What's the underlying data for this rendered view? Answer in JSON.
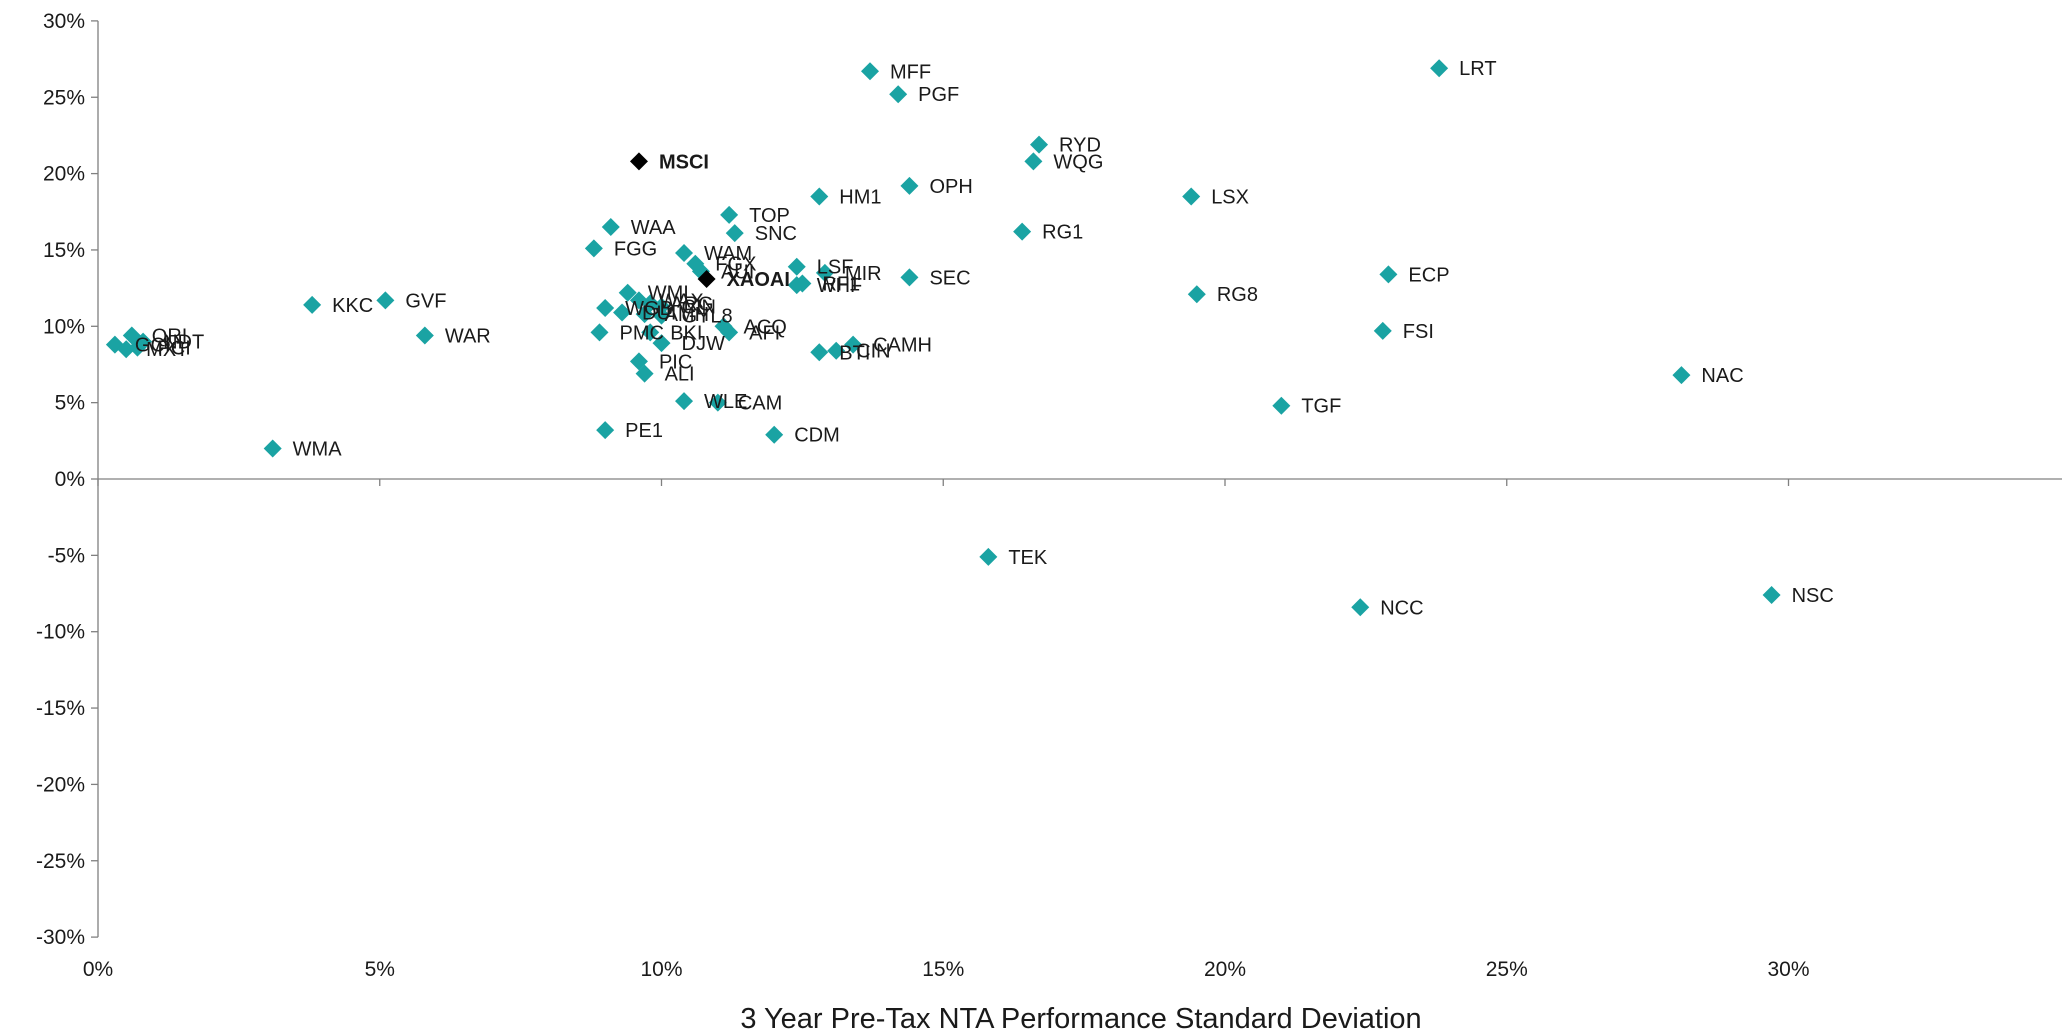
{
  "chart_data": {
    "type": "scatter",
    "title": "",
    "xlabel": "3 Year Pre-Tax NTA Performance Standard Deviation",
    "ylabel": "",
    "xlim": [
      0,
      35
    ],
    "ylim": [
      -30,
      30
    ],
    "x_ticks": [
      0,
      5,
      10,
      15,
      20,
      25,
      30
    ],
    "x_tick_labels": [
      "0%",
      "5%",
      "10%",
      "15%",
      "20%",
      "25%",
      "30%"
    ],
    "y_ticks": [
      30,
      25,
      20,
      15,
      10,
      5,
      0,
      -5,
      -10,
      -15,
      -20,
      -25,
      -30
    ],
    "y_tick_labels": [
      "30%",
      "25%",
      "20%",
      "15%",
      "10%",
      "5%",
      "0%",
      "-5%",
      "-10%",
      "-15%",
      "-20%",
      "-25%",
      "-30%"
    ],
    "grid": false,
    "legend": "none",
    "colors": {
      "point": "#1aa3a3",
      "highlight": "#000000"
    },
    "points": [
      {
        "label": "MFF",
        "x": 13.7,
        "y": 26.7
      },
      {
        "label": "PGF",
        "x": 14.2,
        "y": 25.2
      },
      {
        "label": "LRT",
        "x": 23.8,
        "y": 26.9
      },
      {
        "label": "MSCI",
        "x": 9.6,
        "y": 20.8,
        "highlight": true
      },
      {
        "label": "RYD",
        "x": 16.7,
        "y": 21.9
      },
      {
        "label": "WQG",
        "x": 16.6,
        "y": 20.8
      },
      {
        "label": "OPH",
        "x": 14.4,
        "y": 19.2
      },
      {
        "label": "HM1",
        "x": 12.8,
        "y": 18.5
      },
      {
        "label": "LSX",
        "x": 19.4,
        "y": 18.5
      },
      {
        "label": "TOP",
        "x": 11.2,
        "y": 17.3
      },
      {
        "label": "WAA",
        "x": 9.1,
        "y": 16.5
      },
      {
        "label": "SNC",
        "x": 11.3,
        "y": 16.1
      },
      {
        "label": "RG1",
        "x": 16.4,
        "y": 16.2
      },
      {
        "label": "FGG",
        "x": 8.8,
        "y": 15.1
      },
      {
        "label": "WAM",
        "x": 10.4,
        "y": 14.8
      },
      {
        "label": "FGX",
        "x": 10.6,
        "y": 14.1
      },
      {
        "label": "AUI",
        "x": 10.7,
        "y": 13.6
      },
      {
        "label": "XAOAI",
        "x": 10.8,
        "y": 13.1,
        "highlight": true
      },
      {
        "label": "LSF",
        "x": 12.4,
        "y": 13.9
      },
      {
        "label": "RF1",
        "x": 12.5,
        "y": 12.8
      },
      {
        "label": "MIR",
        "x": 12.9,
        "y": 13.5
      },
      {
        "label": "WHF",
        "x": 12.4,
        "y": 12.7
      },
      {
        "label": "SEC",
        "x": 14.4,
        "y": 13.2
      },
      {
        "label": "ECP",
        "x": 22.9,
        "y": 13.4
      },
      {
        "label": "RG8",
        "x": 19.5,
        "y": 12.1
      },
      {
        "label": "KKC",
        "x": 3.8,
        "y": 11.4
      },
      {
        "label": "GVF",
        "x": 5.1,
        "y": 11.7
      },
      {
        "label": "WMI",
        "x": 9.4,
        "y": 12.2
      },
      {
        "label": "WAX",
        "x": 9.6,
        "y": 11.7
      },
      {
        "label": "ARG",
        "x": 9.8,
        "y": 11.5
      },
      {
        "label": "WGB",
        "x": 9.0,
        "y": 11.2
      },
      {
        "label": "CIN",
        "x": 10.0,
        "y": 11.3
      },
      {
        "label": "DUI",
        "x": 9.3,
        "y": 10.9
      },
      {
        "label": "AMH",
        "x": 9.7,
        "y": 10.8
      },
      {
        "label": "GYL8",
        "x": 10.0,
        "y": 10.7
      },
      {
        "label": "ACQ",
        "x": 11.1,
        "y": 10.0
      },
      {
        "label": "AFI",
        "x": 11.2,
        "y": 9.6
      },
      {
        "label": "FSI",
        "x": 22.8,
        "y": 9.7
      },
      {
        "label": "WAR",
        "x": 5.8,
        "y": 9.4
      },
      {
        "label": "PMC",
        "x": 8.9,
        "y": 9.6
      },
      {
        "label": "BKI",
        "x": 9.8,
        "y": 9.6
      },
      {
        "label": "DJW",
        "x": 10.0,
        "y": 8.9
      },
      {
        "label": "QRI",
        "x": 0.6,
        "y": 9.4
      },
      {
        "label": "NDT",
        "x": 0.8,
        "y": 9.0
      },
      {
        "label": "GCI",
        "x": 0.3,
        "y": 8.8
      },
      {
        "label": "PCI",
        "x": 0.7,
        "y": 8.6
      },
      {
        "label": "MXT",
        "x": 0.5,
        "y": 8.5
      },
      {
        "label": "CAMH",
        "x": 13.4,
        "y": 8.8
      },
      {
        "label": "BTI",
        "x": 12.8,
        "y": 8.3
      },
      {
        "label": "CIN",
        "x": 13.1,
        "y": 8.4
      },
      {
        "label": "PIC",
        "x": 9.6,
        "y": 7.7
      },
      {
        "label": "ALI",
        "x": 9.7,
        "y": 6.9
      },
      {
        "label": "NAC",
        "x": 28.1,
        "y": 6.8
      },
      {
        "label": "WLE",
        "x": 10.4,
        "y": 5.1
      },
      {
        "label": "CAM",
        "x": 11.0,
        "y": 5.0
      },
      {
        "label": "TGF",
        "x": 21.0,
        "y": 4.8
      },
      {
        "label": "PE1",
        "x": 9.0,
        "y": 3.2
      },
      {
        "label": "CDM",
        "x": 12.0,
        "y": 2.9
      },
      {
        "label": "WMA",
        "x": 3.1,
        "y": 2.0
      },
      {
        "label": "TEK",
        "x": 15.8,
        "y": -5.1
      },
      {
        "label": "NCC",
        "x": 22.4,
        "y": -8.4
      },
      {
        "label": "NSC",
        "x": 29.7,
        "y": -7.6
      }
    ]
  }
}
